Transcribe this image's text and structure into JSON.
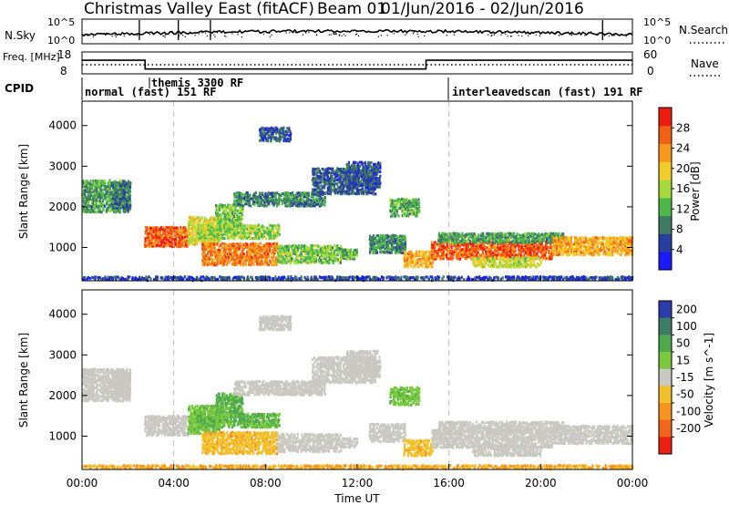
{
  "chart_data": {
    "type": "heatmap",
    "header": {
      "title": "Christmas Valley East (fitACF)",
      "beam": "Beam 01",
      "date_range": "01/Jun/2016 - 02/Jun/2016"
    },
    "time_axis": {
      "label": "Time UT",
      "ticks": [
        "00:00",
        "04:00",
        "08:00",
        "12:00",
        "16:00",
        "20:00",
        "00:00"
      ],
      "range_hours": [
        0,
        24
      ]
    },
    "noise_panel": {
      "left_label": "N.Sky",
      "right_label": "N.Search",
      "left_ticks": [
        "10^5",
        "10^0"
      ],
      "right_ticks": [
        "10^5",
        "10^0"
      ]
    },
    "freq_panel": {
      "left_label": "Freq. [MHz]",
      "left_ticks": [
        18,
        8
      ],
      "right_label": "Nave",
      "right_ticks": [
        60,
        0
      ],
      "freq_hours": [
        0,
        2.75,
        2.75,
        15.0,
        15.0,
        24
      ],
      "freq_values": [
        14.2,
        14.2,
        10.2,
        10.2,
        14.2,
        14.2
      ]
    },
    "cpid_panel": {
      "label": "CPID",
      "segments": [
        {
          "start_hour": 0,
          "text": "normal (fast)  151  RF"
        },
        {
          "start_hour": 3.0,
          "text": "themis  3300  RF"
        },
        {
          "start_hour": 16.0,
          "text": "interleavedscan (fast)  191  RF"
        }
      ]
    },
    "range_axis": {
      "label": "Slant Range [km]",
      "ticks": [
        1000,
        2000,
        3000,
        4000
      ],
      "range": [
        180,
        4600
      ]
    },
    "markers_hours": [
      4,
      16
    ],
    "panels": [
      {
        "name": "power",
        "colorbar_label": "Power [dB]",
        "colorbar_ticks": [
          4,
          8,
          12,
          16,
          20,
          24,
          28
        ],
        "colorbar_range": [
          0,
          32
        ],
        "colors": [
          "#1a1aff",
          "#2a3ea0",
          "#3f7a65",
          "#4eb84a",
          "#a6d93c",
          "#f2cc2b",
          "#f79a1d",
          "#f26111",
          "#ee1c10"
        ]
      },
      {
        "name": "velocity",
        "colorbar_label": "Velocity [m s^-1]",
        "colorbar_ticks": [
          "200",
          "100",
          "50",
          "15",
          "-15",
          "-50",
          "-100",
          "-200"
        ],
        "colors": [
          "#2c3ca8",
          "#3c7d65",
          "#4fa84e",
          "#79c83e",
          "#c9c9c1",
          "#f2c02b",
          "#f7941d",
          "#f2651a",
          "#ee1f10"
        ]
      }
    ],
    "scatter_regions": [
      {
        "t0": 0.0,
        "t1": 2.1,
        "r0": 1900,
        "r1": 2700,
        "power": 11,
        "velocity": 0
      },
      {
        "t0": 1.3,
        "t1": 2.1,
        "r0": 2000,
        "r1": 2650,
        "power": 8,
        "velocity": 0
      },
      {
        "t0": 2.7,
        "t1": 4.6,
        "r0": 1050,
        "r1": 1550,
        "power": 27,
        "velocity": 0
      },
      {
        "t0": 4.6,
        "t1": 6.0,
        "r0": 1100,
        "r1": 1800,
        "power": 18,
        "velocity": 40
      },
      {
        "t0": 5.8,
        "t1": 7.0,
        "r0": 1500,
        "r1": 2100,
        "power": 14,
        "velocity": 55
      },
      {
        "t0": 5.0,
        "t1": 8.6,
        "r0": 1250,
        "r1": 1600,
        "power": 15,
        "velocity": 50
      },
      {
        "t0": 5.2,
        "t1": 8.5,
        "r0": 600,
        "r1": 1150,
        "power": 25,
        "velocity": -40
      },
      {
        "t0": 8.5,
        "t1": 11.3,
        "r0": 650,
        "r1": 1100,
        "power": 14,
        "velocity": 0
      },
      {
        "t0": 11.3,
        "t1": 12.0,
        "r0": 750,
        "r1": 1000,
        "power": 12,
        "velocity": 0
      },
      {
        "t0": 6.6,
        "t1": 10.6,
        "r0": 2050,
        "r1": 2400,
        "power": 9,
        "velocity": 0
      },
      {
        "t0": 10.0,
        "t1": 12.8,
        "r0": 2350,
        "r1": 3000,
        "power": 7,
        "velocity": 0
      },
      {
        "t0": 11.5,
        "t1": 13.0,
        "r0": 2500,
        "r1": 3150,
        "power": 6,
        "velocity": 0
      },
      {
        "t0": 7.7,
        "t1": 9.1,
        "r0": 3650,
        "r1": 4000,
        "power": 6,
        "velocity": 0
      },
      {
        "t0": 13.4,
        "t1": 14.7,
        "r0": 1800,
        "r1": 2250,
        "power": 12,
        "velocity": 40
      },
      {
        "t0": 12.5,
        "t1": 14.1,
        "r0": 900,
        "r1": 1350,
        "power": 10,
        "velocity": 0
      },
      {
        "t0": 14.0,
        "t1": 15.3,
        "r0": 550,
        "r1": 950,
        "power": 22,
        "velocity": -40
      },
      {
        "t0": 15.2,
        "t1": 20.5,
        "r0": 750,
        "r1": 1200,
        "power": 27,
        "velocity": 0
      },
      {
        "t0": 15.5,
        "t1": 21.0,
        "r0": 1150,
        "r1": 1400,
        "power": 11,
        "velocity": 0
      },
      {
        "t0": 17.0,
        "t1": 20.0,
        "r0": 550,
        "r1": 800,
        "power": 17,
        "velocity": 0
      },
      {
        "t0": 20.5,
        "t1": 24.0,
        "r0": 850,
        "r1": 1300,
        "power": 22,
        "velocity": 0
      },
      {
        "t0": 0.0,
        "t1": 24.0,
        "r0": 200,
        "r1": 330,
        "power": 5,
        "velocity": -50
      }
    ]
  }
}
